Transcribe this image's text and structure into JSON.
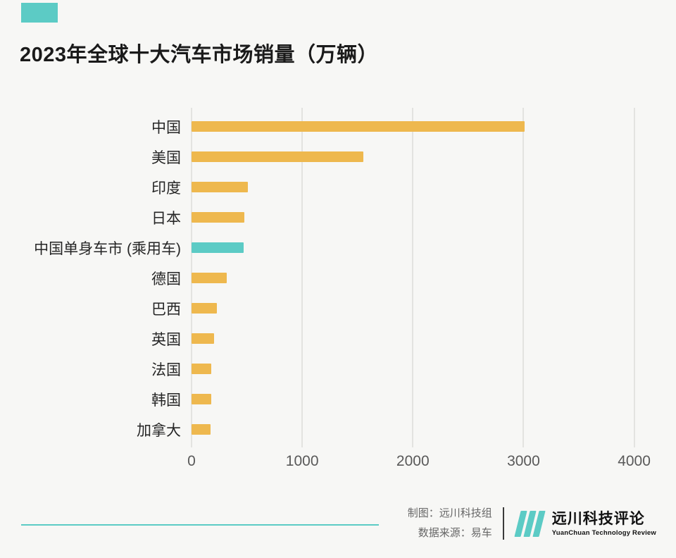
{
  "colors": {
    "background": "#f7f7f5",
    "bar": "#eeb84e",
    "accent": "#5ccbc5",
    "grid": "#e3e3e0",
    "title_text": "#1a1a1a",
    "axis_text": "#595959",
    "credit_text": "#666666"
  },
  "header": {
    "title": "2023年全球十大汽车市场销量（万辆）"
  },
  "chart_data": {
    "type": "bar",
    "orientation": "horizontal",
    "title": "2023年全球十大汽车市场销量（万辆）",
    "categories": [
      "中国",
      "美国",
      "印度",
      "日本",
      "中国单身车市 (乘用车)",
      "德国",
      "巴西",
      "英国",
      "法国",
      "韩国",
      "加拿大"
    ],
    "values": [
      3009,
      1550,
      508,
      477,
      470,
      316,
      231,
      203,
      181,
      176,
      170
    ],
    "highlight_index": 4,
    "xlim": [
      0,
      4200
    ],
    "x_ticks": [
      0,
      1000,
      2000,
      3000,
      4000
    ],
    "xlabel": "",
    "ylabel": "",
    "legend": "none",
    "grid": "vertical"
  },
  "footer": {
    "credit_maker": "制图：远川科技组",
    "credit_source": "数据来源：易车",
    "logo_title": "远川科技评论",
    "logo_subtitle": "YuanChuan Technology Review"
  }
}
